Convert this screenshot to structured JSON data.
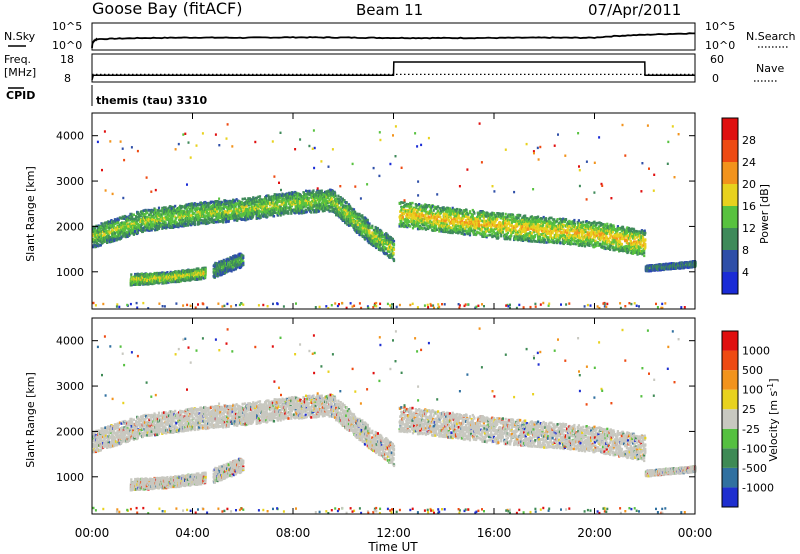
{
  "header": {
    "station": "Goose Bay (fitACF)",
    "beam": "Beam 11",
    "date": "07/Apr/2011"
  },
  "top_panels": {
    "nsky_label": "N.Sky",
    "nsky_ticks": [
      "10^5",
      "10^0"
    ],
    "nsearch_label": "N.Search",
    "nsearch_ticks": [
      "10^5",
      "10^0"
    ],
    "freq_label": "Freq.",
    "freq_unit": "[MHz]",
    "freq_ticks": [
      "18",
      "8"
    ],
    "nave_label": "Nave",
    "nave_ticks": [
      "60",
      "0"
    ],
    "cpid_label": "CPID",
    "cpid_value": "themis (tau) 3310"
  },
  "colors": {
    "power": [
      "#1a2bd6",
      "#2f4fa8",
      "#3f8a5a",
      "#58c23f",
      "#e8d21e",
      "#f2931c",
      "#ee4a12",
      "#e00f0f"
    ],
    "velocity": [
      "#1f2fd0",
      "#3070a0",
      "#3e8a55",
      "#55c040",
      "#c8c8c0",
      "#e8d21e",
      "#f2931c",
      "#ee4a12",
      "#e00f0f"
    ]
  },
  "chart_data": [
    {
      "type": "line",
      "title": "N.Sky / N.Search",
      "x_unit": "hours UT",
      "xlim": [
        0,
        24
      ],
      "series": [
        {
          "name": "N.Sky",
          "x": [
            0,
            0.2,
            2,
            4,
            6,
            8,
            10,
            12,
            14,
            16,
            18,
            20,
            22,
            24
          ],
          "values": [
            1,
            80,
            140,
            180,
            160,
            200,
            180,
            150,
            140,
            150,
            170,
            160,
            700,
            1500
          ]
        },
        {
          "name": "N.Search",
          "x": [
            0,
            24
          ],
          "values": [
            1,
            1
          ]
        }
      ],
      "y_ticks": [
        "10^0",
        "10^5"
      ]
    },
    {
      "type": "line",
      "title": "Freq. / Nave",
      "x_unit": "hours UT",
      "xlim": [
        0,
        24
      ],
      "series": [
        {
          "name": "Freq.",
          "unit": "MHz",
          "x": [
            0,
            0.05,
            12,
            12.01,
            22,
            22.01,
            24
          ],
          "values": [
            8,
            10,
            10,
            15.5,
            15.5,
            10,
            10
          ]
        },
        {
          "name": "Nave",
          "x": [
            0,
            24
          ],
          "values": [
            14,
            14
          ]
        }
      ],
      "y_ticks_left": [
        8,
        18
      ],
      "y_ticks_right": [
        0,
        60
      ]
    },
    {
      "type": "heatmap",
      "title": "Power [dB]",
      "xlabel": "Time UT",
      "ylabel": "Slant Range [km]",
      "xlim": [
        0,
        24
      ],
      "ylim": [
        180,
        4500
      ],
      "x_ticks": [
        "00:00",
        "04:00",
        "08:00",
        "12:00",
        "16:00",
        "20:00",
        "00:00"
      ],
      "y_ticks": [
        1000,
        2000,
        3000,
        4000
      ],
      "colorbar_label": "Power [dB]",
      "colorbar_ticks": [
        4,
        8,
        12,
        16,
        20,
        24,
        28
      ],
      "bands": [
        {
          "t": [
            0,
            2,
            4,
            6,
            8,
            9.5,
            11,
            12
          ],
          "r": [
            1800,
            2150,
            2300,
            2400,
            2550,
            2600,
            1900,
            1500
          ],
          "width": 300,
          "power": 14
        },
        {
          "t": [
            1.5,
            3,
            4.5
          ],
          "r": [
            850,
            900,
            1000
          ],
          "width": 150,
          "power": 16
        },
        {
          "t": [
            4.8,
            6
          ],
          "r": [
            1050,
            1300
          ],
          "width": 200,
          "power": 10
        },
        {
          "t": [
            12.2,
            16,
            20,
            22
          ],
          "r": [
            2300,
            2050,
            1850,
            1650
          ],
          "width": 350,
          "power": 18
        },
        {
          "t": [
            22,
            24
          ],
          "r": [
            1100,
            1200
          ],
          "width": 80,
          "power": 8
        }
      ]
    },
    {
      "type": "heatmap",
      "title": "Velocity [m s-1]",
      "xlabel": "Time UT",
      "ylabel": "Slant Range [km]",
      "xlim": [
        0,
        24
      ],
      "ylim": [
        180,
        4500
      ],
      "x_ticks": [
        "00:00",
        "04:00",
        "08:00",
        "12:00",
        "16:00",
        "20:00",
        "00:00"
      ],
      "y_ticks": [
        1000,
        2000,
        3000,
        4000
      ],
      "colorbar_label": "Velocity [m s-1]",
      "colorbar_ticks": [
        1000,
        500,
        100,
        25,
        -25,
        -100,
        -500,
        -1000
      ],
      "ground_scatter_color": "#c8c8c0"
    }
  ],
  "labels": {
    "time_axis_label": "Time UT",
    "slant_range_label": "Slant Range [km]",
    "power_label": "Power [dB]",
    "velocity_label": "Velocity"
  }
}
